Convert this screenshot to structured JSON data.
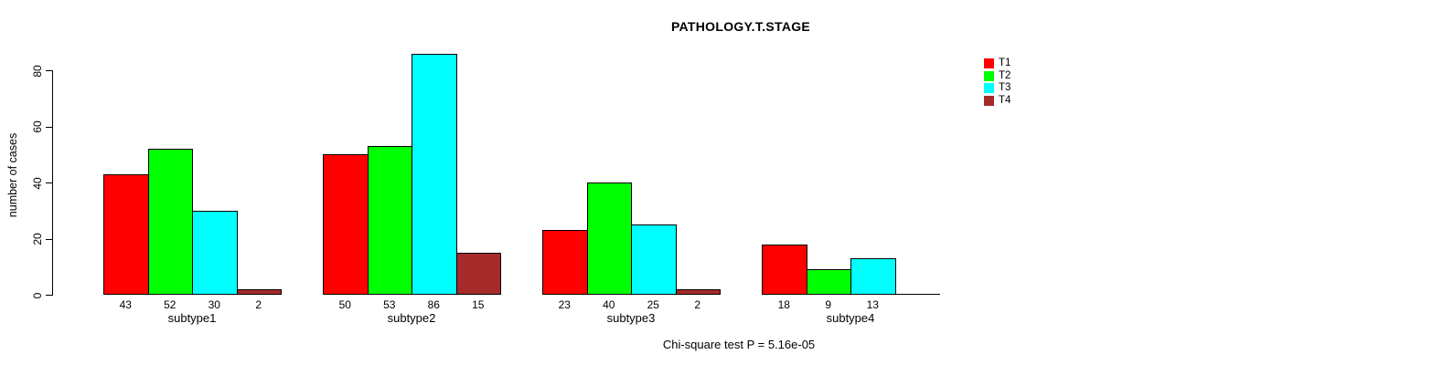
{
  "page": {
    "background_color": "#FFFFFF"
  },
  "chart_data": {
    "type": "bar",
    "title": "PATHOLOGY.T.STAGE",
    "ylabel": "number of cases",
    "xlabel": "",
    "caption": "Chi-square test P = 5.16e-05",
    "categories": [
      "subtype1",
      "subtype2",
      "subtype3",
      "subtype4"
    ],
    "series": [
      {
        "name": "T1",
        "color": "#FF0000",
        "values": [
          43,
          50,
          23,
          18
        ]
      },
      {
        "name": "T2",
        "color": "#00FF00",
        "values": [
          52,
          53,
          40,
          9
        ]
      },
      {
        "name": "T3",
        "color": "#00FFFF",
        "values": [
          30,
          86,
          25,
          13
        ]
      },
      {
        "name": "T4",
        "color": "#A52A2A",
        "values": [
          2,
          15,
          2,
          0
        ]
      }
    ],
    "bar_value_labels": [
      [
        "43",
        "52",
        "30",
        "2"
      ],
      [
        "50",
        "53",
        "86",
        "15"
      ],
      [
        "23",
        "40",
        "25",
        "2"
      ],
      [
        "18",
        "9",
        "13",
        ""
      ]
    ],
    "yticks": [
      0,
      20,
      40,
      60,
      80
    ],
    "ylim": [
      0,
      88
    ],
    "grid": false,
    "legend_position": "top-right",
    "legend_entries": [
      "T1",
      "T2",
      "T3",
      "T4"
    ],
    "axis_color": "#000000",
    "bar_border_color": "#000000"
  }
}
